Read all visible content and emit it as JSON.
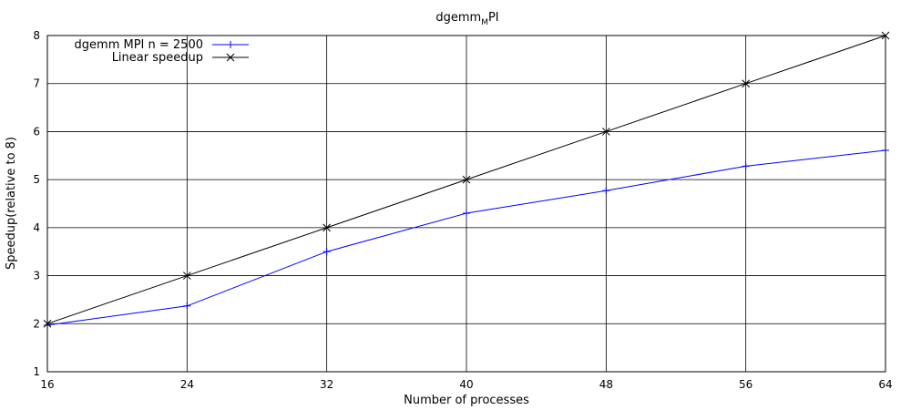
{
  "chart_data": {
    "type": "line",
    "title": "dgemm",
    "title_subscript": "M",
    "title_suffix": "PI",
    "xlabel": "Number of processes",
    "ylabel": "Speedup(relative to 8)",
    "xlim": [
      16,
      64
    ],
    "ylim": [
      1,
      8
    ],
    "x_ticks": [
      16,
      24,
      32,
      40,
      48,
      56,
      64
    ],
    "y_ticks": [
      1,
      2,
      3,
      4,
      5,
      6,
      7,
      8
    ],
    "x": [
      16,
      24,
      32,
      40,
      48,
      56,
      64
    ],
    "grid": true,
    "legend_position": "top-left",
    "series": [
      {
        "name": "dgemm MPI n = 2500",
        "color": "#0000ff",
        "marker": "plus",
        "values": [
          1.97,
          2.37,
          3.5,
          4.3,
          4.77,
          5.28,
          5.61
        ]
      },
      {
        "name": "Linear speedup",
        "color": "#000000",
        "marker": "cross",
        "values": [
          2,
          3,
          4,
          5,
          6,
          7,
          8
        ]
      }
    ]
  }
}
